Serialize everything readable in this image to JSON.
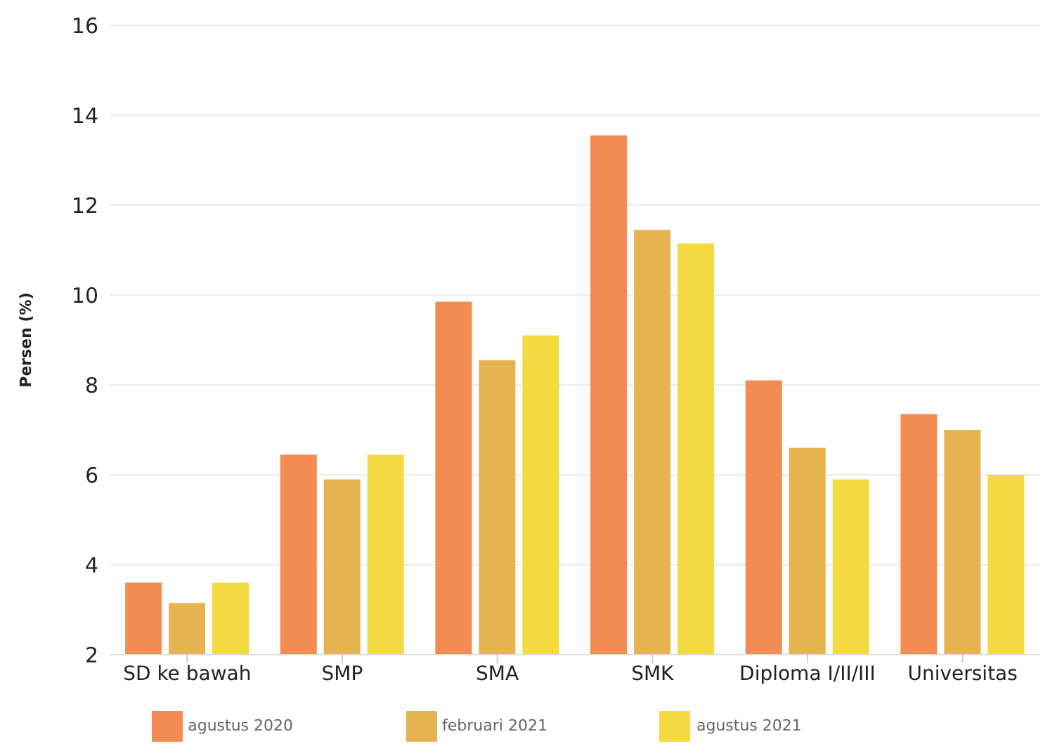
{
  "chart_data": {
    "type": "bar",
    "ylabel": "Persen (%)",
    "categories": [
      "SD ke bawah",
      "SMP",
      "SMA",
      "SMK",
      "Diploma I/II/III",
      "Universitas"
    ],
    "series": [
      {
        "name": "agustus 2020",
        "color": "#f28c52",
        "values": [
          3.6,
          6.45,
          9.85,
          13.55,
          8.1,
          7.35
        ]
      },
      {
        "name": "februari 2021",
        "color": "#e6b352",
        "values": [
          3.15,
          5.9,
          8.55,
          11.45,
          6.6,
          7.0
        ]
      },
      {
        "name": "agustus 2021",
        "color": "#f3da40",
        "values": [
          3.6,
          6.45,
          9.1,
          11.15,
          5.9,
          6.0
        ]
      }
    ],
    "ylim": [
      2,
      16
    ],
    "yticks": [
      2,
      4,
      6,
      8,
      10,
      12,
      14,
      16
    ],
    "grid": "y",
    "legend": "bottom"
  }
}
